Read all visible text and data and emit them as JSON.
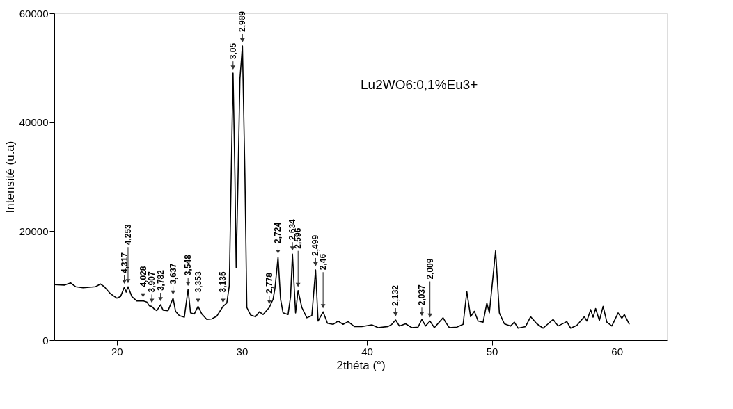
{
  "chart_data": {
    "type": "line",
    "xlabel": "2théta (°)",
    "ylabel": "Intensité (u.a)",
    "xlim": [
      15,
      64
    ],
    "xticks": [
      20,
      30,
      40,
      50,
      60
    ],
    "ylim": [
      0,
      60000
    ],
    "yticks": [
      0,
      20000,
      40000,
      60000
    ],
    "grid": false,
    "marker": "none",
    "line_style": "solid",
    "series": [
      {
        "color": "#000000",
        "x": [
          15.0,
          15.8,
          16.3,
          16.7,
          17.3,
          17.8,
          18.3,
          18.7,
          19.0,
          19.5,
          20.0,
          20.3,
          20.6,
          20.75,
          20.9,
          21.2,
          21.6,
          22.1,
          22.4,
          22.6,
          22.8,
          23.0,
          23.2,
          23.5,
          23.7,
          24.1,
          24.5,
          24.7,
          25.0,
          25.4,
          25.7,
          25.9,
          26.2,
          26.5,
          26.8,
          27.2,
          27.6,
          28.0,
          28.5,
          28.8,
          29.0,
          29.15,
          29.3,
          29.45,
          29.55,
          29.7,
          29.85,
          30.05,
          30.25,
          30.4,
          30.7,
          31.1,
          31.4,
          31.7,
          32.2,
          32.5,
          32.65,
          32.9,
          33.1,
          33.3,
          33.7,
          33.9,
          34.05,
          34.3,
          34.5,
          34.8,
          35.2,
          35.6,
          35.9,
          36.1,
          36.5,
          36.85,
          37.3,
          37.7,
          38.1,
          38.5,
          39.0,
          39.6,
          40.4,
          40.9,
          41.7,
          42.0,
          42.3,
          42.6,
          43.1,
          43.6,
          44.1,
          44.4,
          44.7,
          45.05,
          45.4,
          46.1,
          46.3,
          46.6,
          47.2,
          47.7,
          48.0,
          48.3,
          48.6,
          48.9,
          49.3,
          49.6,
          49.8,
          50.3,
          50.6,
          51.0,
          51.5,
          51.8,
          52.1,
          52.7,
          53.1,
          53.6,
          54.1,
          54.9,
          55.3,
          56.0,
          56.3,
          56.8,
          57.4,
          57.6,
          57.9,
          58.1,
          58.3,
          58.6,
          58.9,
          59.2,
          59.6,
          60.1,
          60.4,
          60.6,
          61.0
        ],
        "values": [
          10200,
          10100,
          10500,
          9800,
          9600,
          9700,
          9800,
          10300,
          9800,
          8500,
          7700,
          8000,
          9700,
          8800,
          9800,
          8000,
          7200,
          7200,
          7000,
          6300,
          6200,
          5700,
          5400,
          6500,
          5500,
          5400,
          7700,
          5300,
          4500,
          4200,
          9300,
          5000,
          4800,
          6200,
          4800,
          3800,
          3900,
          4400,
          6200,
          6800,
          10000,
          30000,
          49000,
          30000,
          13300,
          30000,
          48000,
          54000,
          30000,
          6000,
          4600,
          4300,
          5200,
          4700,
          6000,
          7500,
          9500,
          15200,
          7500,
          5000,
          4700,
          8000,
          15800,
          5000,
          9100,
          6000,
          4100,
          4500,
          12900,
          3500,
          5200,
          3100,
          2900,
          3500,
          2900,
          3400,
          2500,
          2500,
          2800,
          2300,
          2500,
          2900,
          3700,
          2600,
          3000,
          2300,
          2400,
          3800,
          2600,
          3500,
          2300,
          4100,
          3300,
          2300,
          2400,
          2900,
          8900,
          4300,
          5300,
          3500,
          3300,
          6800,
          5000,
          16400,
          5000,
          3000,
          2600,
          3300,
          2200,
          2500,
          4300,
          3000,
          2200,
          3800,
          2600,
          3400,
          2200,
          2700,
          4300,
          3500,
          5600,
          4200,
          5800,
          3600,
          6200,
          3300,
          2600,
          5000,
          4000,
          4700,
          2900
        ]
      }
    ],
    "annotations": [
      "Lu2WO6:0,1%Eu3+",
      {
        "text": "4,317",
        "x": 20.6,
        "y": 9700
      },
      {
        "text": "4,253",
        "x": 20.9,
        "y": 9800
      },
      {
        "text": "4,028",
        "x": 22.1,
        "y": 7200
      },
      {
        "text": "3,907",
        "x": 22.8,
        "y": 6200
      },
      {
        "text": "3,782",
        "x": 23.5,
        "y": 6500
      },
      {
        "text": "3,637",
        "x": 24.5,
        "y": 7700
      },
      {
        "text": "3,548",
        "x": 25.7,
        "y": 9300
      },
      {
        "text": "3,353",
        "x": 26.5,
        "y": 6200
      },
      {
        "text": "3,135",
        "x": 28.5,
        "y": 6200
      },
      {
        "text": "3,05",
        "x": 29.3,
        "y": 49000
      },
      {
        "text": "2,989",
        "x": 30.05,
        "y": 54000
      },
      {
        "text": "2,778",
        "x": 32.2,
        "y": 6000
      },
      {
        "text": "2,724",
        "x": 32.9,
        "y": 15200
      },
      {
        "text": "2,634",
        "x": 34.05,
        "y": 15800
      },
      {
        "text": "2,596",
        "x": 34.5,
        "y": 9100
      },
      {
        "text": "2,499",
        "x": 35.9,
        "y": 12900
      },
      {
        "text": "2,46",
        "x": 36.5,
        "y": 5200
      },
      {
        "text": "2,132",
        "x": 42.3,
        "y": 3700
      },
      {
        "text": "2,037",
        "x": 44.4,
        "y": 3800
      },
      {
        "text": "2,009",
        "x": 45.05,
        "y": 3500
      }
    ]
  }
}
